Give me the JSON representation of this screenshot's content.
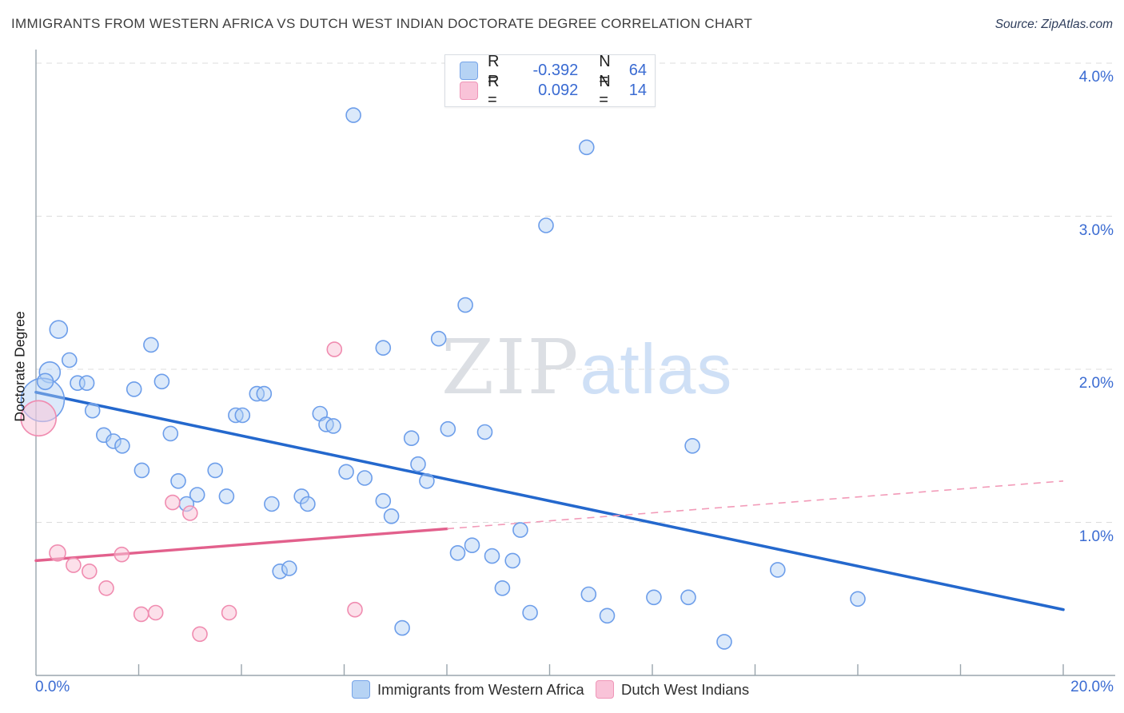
{
  "header": {
    "title": "IMMIGRANTS FROM WESTERN AFRICA VS DUTCH WEST INDIAN DOCTORATE DEGREE CORRELATION CHART",
    "source": "Source: ZipAtlas.com"
  },
  "stats_legend": {
    "rows": [
      {
        "series": "western_africa",
        "r_label": "R =",
        "r_value": "-0.392",
        "n_label": "N =",
        "n_value": "64"
      },
      {
        "series": "dutch_west_indian",
        "r_label": "R =",
        "r_value": "0.092",
        "n_label": "N =",
        "n_value": "14"
      }
    ]
  },
  "watermark": {
    "zip": "ZIP",
    "atlas": "atlas"
  },
  "axes": {
    "y_label": "Doctorate Degree",
    "y_ticks": [
      "4.0%",
      "3.0%",
      "2.0%",
      "1.0%"
    ],
    "x_tick_left": "0.0%",
    "x_tick_right": "20.0%"
  },
  "bottom_legend": [
    {
      "label": "Immigrants from Western Africa"
    },
    {
      "label": "Dutch West Indians"
    }
  ],
  "colors": {
    "blue_point_fill": "rgba(176,206,245,0.45)",
    "blue_point_stroke": "#6d9eea",
    "pink_point_fill": "rgba(249,198,216,0.55)",
    "pink_point_stroke": "#f08cb0",
    "blue_trend": "#2468cd",
    "pink_trend": "#e2608c",
    "pink_trend_dashed": "#f29ab8",
    "gridline": "#dcdcdc",
    "axis": "#9aa5ad",
    "accent_text": "#3a6bd2"
  },
  "chart_data": {
    "type": "scatter",
    "title": "Immigrants from Western Africa vs Dutch West Indian Doctorate Degree",
    "xlabel": "Immigrants from Western Africa (%)",
    "ylabel": "Doctorate Degree",
    "xlim": [
      0,
      20
    ],
    "ylim": [
      0,
      4.1
    ],
    "x_gridlines_pct": [
      2,
      4,
      6,
      8,
      10,
      12,
      14,
      16,
      18,
      20
    ],
    "y_gridlines_pct": [
      1.0,
      2.0,
      3.0,
      4.0
    ],
    "legend_position": "top-center and bottom",
    "grid": "dashed-horizontal",
    "series": [
      {
        "name": "Immigrants from Western Africa",
        "color_key": "blue",
        "r": -0.392,
        "n": 64,
        "points_x_y_r": [
          [
            6.18,
            3.66,
            9
          ],
          [
            10.72,
            3.45,
            9
          ],
          [
            9.93,
            2.94,
            9
          ],
          [
            8.36,
            2.42,
            9
          ],
          [
            0.44,
            2.26,
            11
          ],
          [
            2.24,
            2.16,
            9
          ],
          [
            0.65,
            2.06,
            9
          ],
          [
            0.27,
            1.98,
            13
          ],
          [
            0.81,
            1.91,
            9
          ],
          [
            0.99,
            1.91,
            9
          ],
          [
            0.13,
            1.8,
            27
          ],
          [
            0.18,
            1.92,
            10
          ],
          [
            1.91,
            1.87,
            9
          ],
          [
            2.45,
            1.92,
            9
          ],
          [
            1.1,
            1.73,
            9
          ],
          [
            1.32,
            1.57,
            9
          ],
          [
            1.51,
            1.53,
            9
          ],
          [
            1.68,
            1.5,
            9
          ],
          [
            2.62,
            1.58,
            9
          ],
          [
            2.06,
            1.34,
            9
          ],
          [
            2.77,
            1.27,
            9
          ],
          [
            3.14,
            1.18,
            9
          ],
          [
            3.49,
            1.34,
            9
          ],
          [
            3.71,
            1.17,
            9
          ],
          [
            4.3,
            1.84,
            9
          ],
          [
            4.44,
            1.84,
            9
          ],
          [
            3.89,
            1.7,
            9
          ],
          [
            4.02,
            1.7,
            9
          ],
          [
            4.59,
            1.12,
            9
          ],
          [
            5.17,
            1.17,
            9
          ],
          [
            5.29,
            1.12,
            9
          ],
          [
            5.53,
            1.71,
            9
          ],
          [
            5.65,
            1.64,
            9
          ],
          [
            5.79,
            1.63,
            9
          ],
          [
            6.76,
            2.14,
            9
          ],
          [
            6.04,
            1.33,
            9
          ],
          [
            6.4,
            1.29,
            9
          ],
          [
            6.76,
            1.14,
            9
          ],
          [
            2.93,
            1.12,
            9
          ],
          [
            4.75,
            0.68,
            9
          ],
          [
            4.93,
            0.7,
            9
          ],
          [
            7.84,
            2.2,
            9
          ],
          [
            7.31,
            1.55,
            9
          ],
          [
            8.02,
            1.61,
            9
          ],
          [
            8.74,
            1.59,
            9
          ],
          [
            7.44,
            1.38,
            9
          ],
          [
            7.61,
            1.27,
            9
          ],
          [
            12.78,
            1.5,
            9
          ],
          [
            6.92,
            1.04,
            9
          ],
          [
            9.43,
            0.95,
            9
          ],
          [
            8.21,
            0.8,
            9
          ],
          [
            8.49,
            0.85,
            9
          ],
          [
            8.88,
            0.78,
            9
          ],
          [
            9.28,
            0.75,
            9
          ],
          [
            9.08,
            0.57,
            9
          ],
          [
            9.62,
            0.41,
            9
          ],
          [
            10.76,
            0.53,
            9
          ],
          [
            11.12,
            0.39,
            9
          ],
          [
            12.03,
            0.51,
            9
          ],
          [
            12.7,
            0.51,
            9
          ],
          [
            13.4,
            0.22,
            9
          ],
          [
            7.13,
            0.31,
            9
          ],
          [
            14.44,
            0.69,
            9
          ],
          [
            16.0,
            0.5,
            9
          ]
        ]
      },
      {
        "name": "Dutch West Indians",
        "color_key": "pink",
        "r": 0.092,
        "n": 14,
        "points_x_y_r": [
          [
            0.05,
            1.68,
            22
          ],
          [
            5.81,
            2.13,
            9
          ],
          [
            2.66,
            1.13,
            9
          ],
          [
            3.0,
            1.06,
            9
          ],
          [
            0.42,
            0.8,
            10
          ],
          [
            0.73,
            0.72,
            9
          ],
          [
            1.04,
            0.68,
            9
          ],
          [
            1.37,
            0.57,
            9
          ],
          [
            1.67,
            0.79,
            9
          ],
          [
            2.05,
            0.4,
            9
          ],
          [
            2.33,
            0.41,
            9
          ],
          [
            3.19,
            0.27,
            9
          ],
          [
            3.76,
            0.41,
            9
          ],
          [
            6.21,
            0.43,
            9
          ]
        ]
      }
    ],
    "trend_lines": [
      {
        "series": "Immigrants from Western Africa",
        "style": "solid",
        "x1": 0,
        "y1": 1.85,
        "x2": 20,
        "y2": 0.43
      },
      {
        "series": "Dutch West Indians",
        "style": "solid-then-dashed",
        "x1": 0,
        "y1": 0.75,
        "x2": 20,
        "y2": 1.27,
        "solid_until_x": 8.0
      }
    ]
  }
}
